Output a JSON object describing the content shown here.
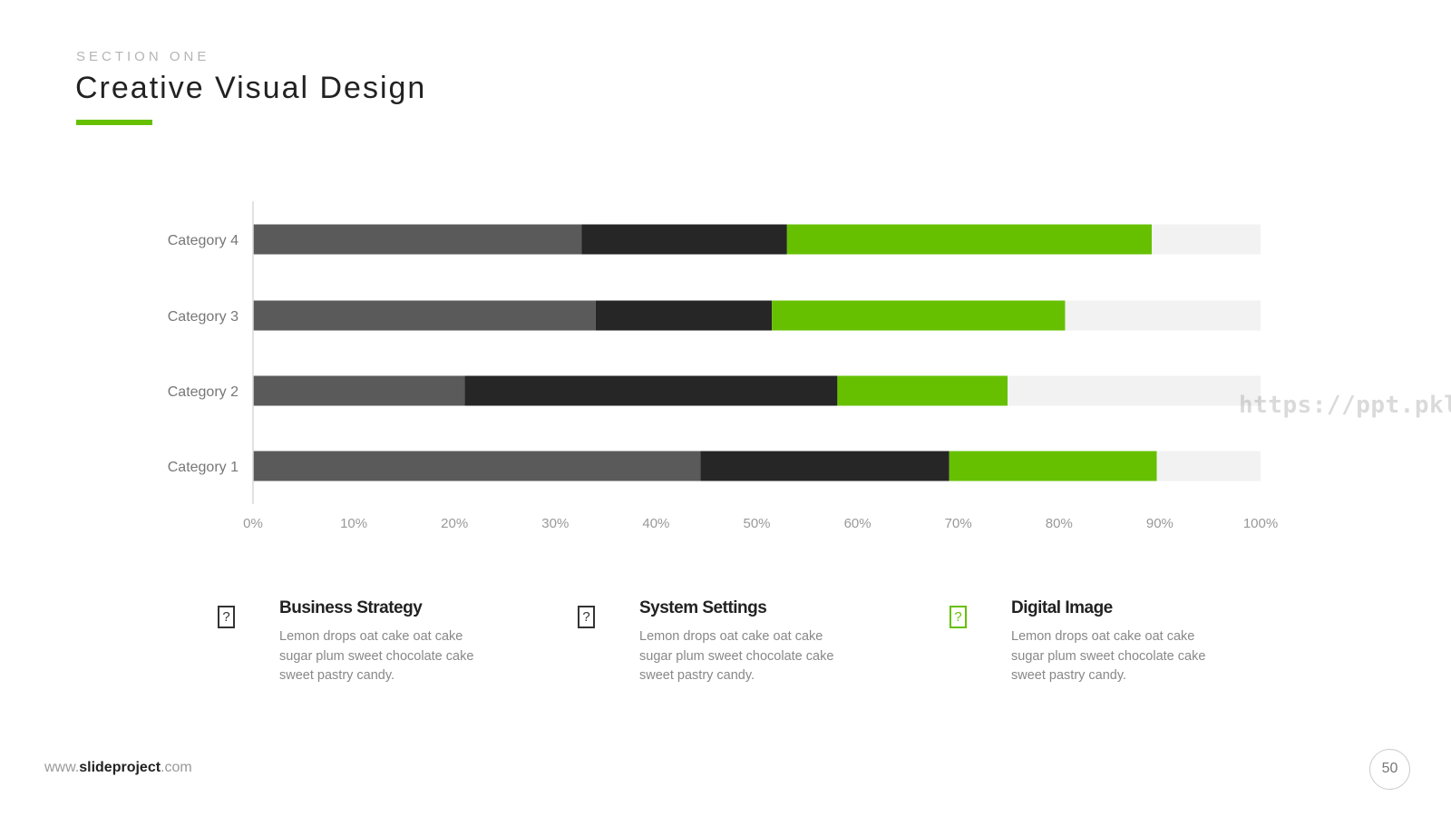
{
  "header": {
    "kicker": "SECTION ONE",
    "title": "Creative Visual Design",
    "accent_color": "#66c000"
  },
  "chart_data": {
    "type": "bar",
    "orientation": "horizontal",
    "stacked": true,
    "categories": [
      "Category 1",
      "Category 2",
      "Category 3",
      "Category 4"
    ],
    "series": [
      {
        "values": [
          44.4,
          21.0,
          34.0,
          32.6
        ],
        "color": "#5a5a5a"
      },
      {
        "values": [
          24.7,
          37.0,
          17.5,
          20.4
        ],
        "color": "#262626"
      },
      {
        "values": [
          20.6,
          16.9,
          29.1,
          36.2
        ],
        "color": "#66c000"
      },
      {
        "values": [
          10.3,
          25.1,
          19.4,
          10.8
        ],
        "color": "#f2f2f2"
      }
    ],
    "xlim": [
      0,
      100
    ],
    "xticks": [
      "0%",
      "10%",
      "20%",
      "30%",
      "40%",
      "50%",
      "60%",
      "70%",
      "80%",
      "90%",
      "100%"
    ],
    "grid": false,
    "legend": "none"
  },
  "features": [
    {
      "title": "Business Strategy",
      "desc": "Lemon drops oat cake oat cake sugar plum sweet chocolate cake sweet pastry candy.",
      "icon": "question-doc-icon",
      "icon_color": "#333333"
    },
    {
      "title": "System Settings",
      "desc": "Lemon drops oat cake oat cake sugar plum sweet chocolate cake sweet pastry candy.",
      "icon": "question-doc-icon",
      "icon_color": "#333333"
    },
    {
      "title": "Digital Image",
      "desc": "Lemon drops oat cake oat cake sugar plum sweet chocolate cake sweet pastry candy.",
      "icon": "question-doc-icon",
      "icon_color": "#66c000"
    }
  ],
  "footer": {
    "prefix": "www.",
    "brand": "slideproject",
    "suffix": ".com"
  },
  "page_number": "50",
  "watermark": "https://ppt.pkll.de"
}
